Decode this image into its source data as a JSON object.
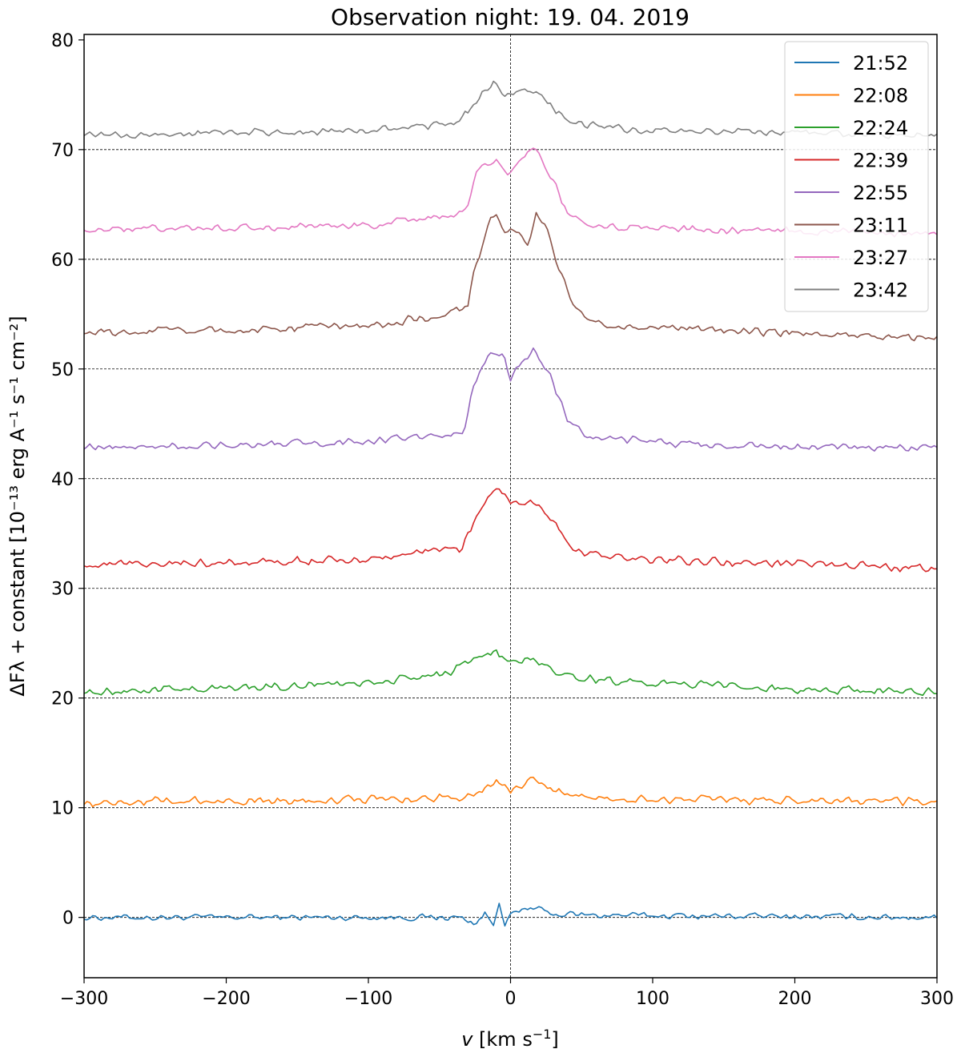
{
  "chart_data": {
    "type": "line",
    "title": "Observation night: 19. 04. 2019",
    "xlabel_var": "v",
    "xlabel_unit": "[km s",
    "xlabel_sup": "−1",
    "xlabel_end": "]",
    "ylabel": "ΔFλ + constant [10⁻¹³ erg A⁻¹ s⁻¹ cm⁻²]",
    "xlim": [
      -300,
      300
    ],
    "ylim": [
      -5.5,
      80.5
    ],
    "xticks": [
      -300,
      -200,
      -100,
      0,
      100,
      200,
      300
    ],
    "xtick_labels": [
      "−300",
      "−200",
      "−100",
      "0",
      "100",
      "200",
      "300"
    ],
    "yticks": [
      0,
      10,
      20,
      30,
      40,
      50,
      60,
      70,
      80
    ],
    "ytick_labels": [
      "0",
      "10",
      "20",
      "30",
      "40",
      "50",
      "60",
      "70",
      "80"
    ],
    "grid_hlines": [
      0,
      10,
      20,
      30,
      40,
      50,
      60,
      70
    ],
    "vline": 0,
    "legend_position": "top-right",
    "series": [
      {
        "name": "21:52",
        "color": "#1f77b4",
        "offset": 0,
        "noise": 0.35,
        "profile": [
          {
            "x": -300,
            "y": 0.0
          },
          {
            "x": -35,
            "y": 0.0
          },
          {
            "x": -25,
            "y": -0.6
          },
          {
            "x": -18,
            "y": 0.4
          },
          {
            "x": -12,
            "y": -0.8
          },
          {
            "x": -8,
            "y": 1.5
          },
          {
            "x": -4,
            "y": -0.5
          },
          {
            "x": 0,
            "y": 0.2
          },
          {
            "x": 15,
            "y": 0.9
          },
          {
            "x": 30,
            "y": 0.3
          },
          {
            "x": 60,
            "y": 0.2
          },
          {
            "x": 300,
            "y": 0.0
          }
        ]
      },
      {
        "name": "22:08",
        "color": "#ff7f0e",
        "offset": 10.5,
        "noise": 0.45,
        "profile": [
          {
            "x": -300,
            "y": 0.0
          },
          {
            "x": -80,
            "y": 0.3
          },
          {
            "x": -40,
            "y": 0.3
          },
          {
            "x": -20,
            "y": 1.0
          },
          {
            "x": -10,
            "y": 2.2
          },
          {
            "x": 0,
            "y": 1.0
          },
          {
            "x": 15,
            "y": 2.0
          },
          {
            "x": 40,
            "y": 0.6
          },
          {
            "x": 80,
            "y": 0.3
          },
          {
            "x": 300,
            "y": 0.0
          }
        ]
      },
      {
        "name": "22:24",
        "color": "#2ca02c",
        "offset": 20.6,
        "noise": 0.45,
        "profile": [
          {
            "x": -300,
            "y": 0.0
          },
          {
            "x": -200,
            "y": 0.3
          },
          {
            "x": -100,
            "y": 0.8
          },
          {
            "x": -45,
            "y": 1.6
          },
          {
            "x": -25,
            "y": 3.0
          },
          {
            "x": -10,
            "y": 3.6
          },
          {
            "x": 0,
            "y": 2.4
          },
          {
            "x": 15,
            "y": 3.2
          },
          {
            "x": 35,
            "y": 1.5
          },
          {
            "x": 80,
            "y": 0.9
          },
          {
            "x": 200,
            "y": 0.2
          },
          {
            "x": 300,
            "y": 0.0
          }
        ]
      },
      {
        "name": "22:39",
        "color": "#d62728",
        "offset": 32.2,
        "noise": 0.45,
        "profile": [
          {
            "x": -300,
            "y": 0.0
          },
          {
            "x": -100,
            "y": 0.4
          },
          {
            "x": -50,
            "y": 1.3
          },
          {
            "x": -35,
            "y": 1.3
          },
          {
            "x": -25,
            "y": 4.0
          },
          {
            "x": -15,
            "y": 6.2
          },
          {
            "x": -8,
            "y": 7.0
          },
          {
            "x": 0,
            "y": 5.5
          },
          {
            "x": 15,
            "y": 5.8
          },
          {
            "x": 30,
            "y": 4.0
          },
          {
            "x": 45,
            "y": 1.2
          },
          {
            "x": 80,
            "y": 0.5
          },
          {
            "x": 300,
            "y": -0.4
          }
        ]
      },
      {
        "name": "22:55",
        "color": "#9467bd",
        "offset": 42.8,
        "noise": 0.4,
        "profile": [
          {
            "x": -300,
            "y": 0.0
          },
          {
            "x": -100,
            "y": 0.6
          },
          {
            "x": -40,
            "y": 1.3
          },
          {
            "x": -33,
            "y": 1.5
          },
          {
            "x": -27,
            "y": 5.5
          },
          {
            "x": -15,
            "y": 8.5
          },
          {
            "x": -5,
            "y": 8.5
          },
          {
            "x": 0,
            "y": 6.4
          },
          {
            "x": 8,
            "y": 8.0
          },
          {
            "x": 17,
            "y": 8.9
          },
          {
            "x": 30,
            "y": 6.0
          },
          {
            "x": 40,
            "y": 2.5
          },
          {
            "x": 55,
            "y": 1.0
          },
          {
            "x": 140,
            "y": 0.2
          },
          {
            "x": 300,
            "y": 0.0
          }
        ]
      },
      {
        "name": "23:11",
        "color": "#8c564b",
        "offset": 53.3,
        "noise": 0.45,
        "profile": [
          {
            "x": -300,
            "y": 0.0
          },
          {
            "x": -100,
            "y": 0.6
          },
          {
            "x": -40,
            "y": 1.8
          },
          {
            "x": -30,
            "y": 2.5
          },
          {
            "x": -25,
            "y": 6.0
          },
          {
            "x": -15,
            "y": 10.0
          },
          {
            "x": -10,
            "y": 10.8
          },
          {
            "x": -5,
            "y": 9.5
          },
          {
            "x": 5,
            "y": 9.0
          },
          {
            "x": 12,
            "y": 8.0
          },
          {
            "x": 18,
            "y": 10.8
          },
          {
            "x": 25,
            "y": 10.0
          },
          {
            "x": 33,
            "y": 6.0
          },
          {
            "x": 45,
            "y": 2.5
          },
          {
            "x": 60,
            "y": 0.8
          },
          {
            "x": 300,
            "y": -0.6
          }
        ]
      },
      {
        "name": "23:27",
        "color": "#e377c2",
        "offset": 62.7,
        "noise": 0.4,
        "profile": [
          {
            "x": -300,
            "y": 0.0
          },
          {
            "x": -100,
            "y": 0.4
          },
          {
            "x": -40,
            "y": 1.4
          },
          {
            "x": -30,
            "y": 2.0
          },
          {
            "x": -23,
            "y": 5.8
          },
          {
            "x": -10,
            "y": 6.5
          },
          {
            "x": -3,
            "y": 5.0
          },
          {
            "x": 10,
            "y": 6.5
          },
          {
            "x": 17,
            "y": 7.7
          },
          {
            "x": 30,
            "y": 4.5
          },
          {
            "x": 40,
            "y": 1.5
          },
          {
            "x": 60,
            "y": 0.3
          },
          {
            "x": 300,
            "y": -0.4
          }
        ]
      },
      {
        "name": "23:42",
        "color": "#7f7f7f",
        "offset": 71.3,
        "noise": 0.4,
        "profile": [
          {
            "x": -300,
            "y": 0.0
          },
          {
            "x": -100,
            "y": 0.4
          },
          {
            "x": -45,
            "y": 1.0
          },
          {
            "x": -30,
            "y": 2.0
          },
          {
            "x": -20,
            "y": 4.0
          },
          {
            "x": -12,
            "y": 4.8
          },
          {
            "x": -5,
            "y": 3.8
          },
          {
            "x": 5,
            "y": 3.9
          },
          {
            "x": 18,
            "y": 4.0
          },
          {
            "x": 32,
            "y": 2.2
          },
          {
            "x": 50,
            "y": 1.0
          },
          {
            "x": 100,
            "y": 0.4
          },
          {
            "x": 300,
            "y": 0.0
          }
        ]
      }
    ]
  }
}
